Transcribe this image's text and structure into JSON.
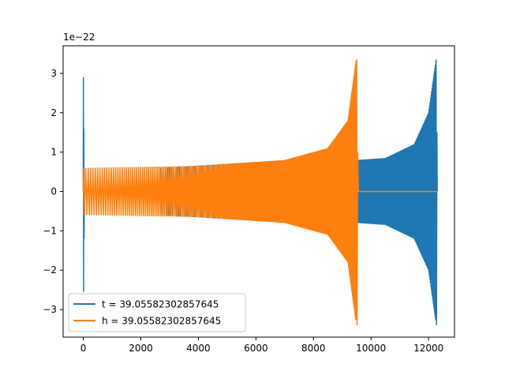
{
  "chart_data": {
    "type": "line",
    "title": "",
    "xlabel": "",
    "ylabel": "",
    "offset_label": "1e−22",
    "xlim": [
      -700,
      12900
    ],
    "ylim": [
      -3.7,
      3.7
    ],
    "xticks": [
      0,
      2000,
      4000,
      6000,
      8000,
      10000,
      12000
    ],
    "xtick_labels": [
      "0",
      "2000",
      "4000",
      "6000",
      "8000",
      "10000",
      "12000"
    ],
    "yticks": [
      3,
      2,
      1,
      0,
      -1,
      -2,
      -3
    ],
    "ytick_labels": [
      "3",
      "2",
      "1",
      "0",
      "−1",
      "−2",
      "−3"
    ],
    "grid": false,
    "legend_position": "lower left",
    "series": [
      {
        "name": "t = 39.05582302857645",
        "color": "#1f77b4",
        "n_samples": 12300,
        "initial_spike_x": [
          0,
          40
        ],
        "initial_spike_peak": 2.9,
        "initial_spike_trough": -2.55,
        "flat_until": 2700,
        "envelope": [
          {
            "x": 2700,
            "amp": 0.6
          },
          {
            "x": 6000,
            "amp": 0.75
          },
          {
            "x": 9500,
            "amp": 0.8
          },
          {
            "x": 10500,
            "amp": 0.85
          },
          {
            "x": 11500,
            "amp": 1.2
          },
          {
            "x": 12000,
            "amp": 2.0
          },
          {
            "x": 12250,
            "amp": 3.3
          }
        ],
        "final_peak": 3.35,
        "final_trough": -3.4,
        "end_x": 12300
      },
      {
        "name": "h = 39.05582302857645",
        "color": "#ff7f0e",
        "n_samples": 9560,
        "flat_after": 9560,
        "envelope": [
          {
            "x": 0,
            "amp": 0.6
          },
          {
            "x": 4000,
            "amp": 0.65
          },
          {
            "x": 7000,
            "amp": 0.8
          },
          {
            "x": 8500,
            "amp": 1.1
          },
          {
            "x": 9200,
            "amp": 1.8
          },
          {
            "x": 9480,
            "amp": 3.3
          }
        ],
        "final_peak": 3.35,
        "final_trough": -3.4,
        "flat_end_x": 12300
      }
    ]
  }
}
